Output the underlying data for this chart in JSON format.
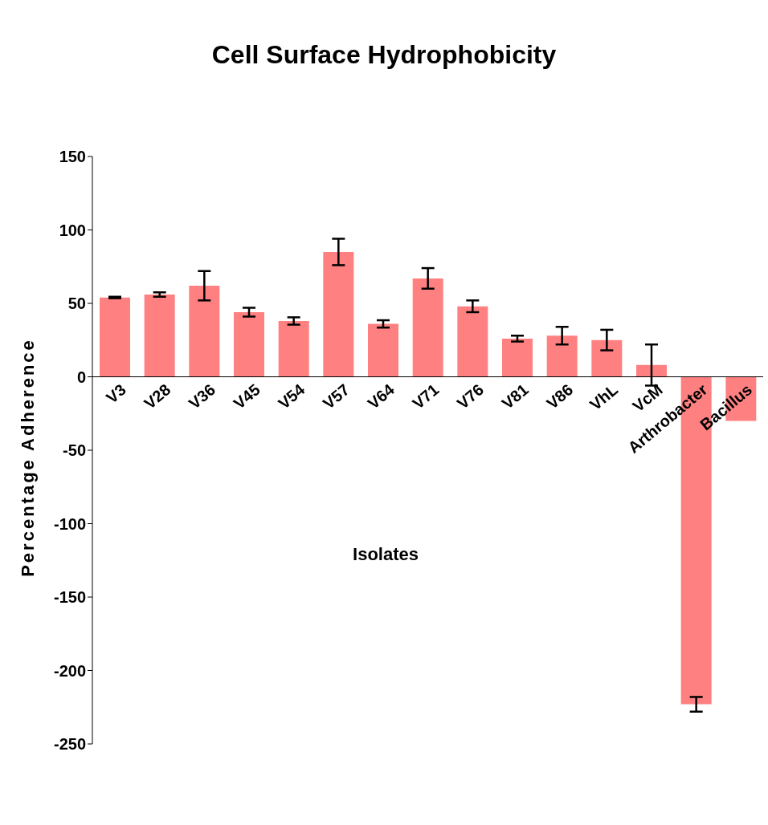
{
  "chart_data": {
    "type": "bar",
    "title": "Cell Surface Hydrophobicity",
    "xlabel": "Isolates",
    "ylabel": "Percentage Adherence",
    "categories": [
      "V3",
      "V28",
      "V36",
      "V45",
      "V54",
      "V57",
      "V64",
      "V71",
      "V76",
      "V81",
      "V86",
      "VhL",
      "VcM",
      "Arthrobacter",
      "Bacillus"
    ],
    "values": [
      54,
      56,
      62,
      44,
      38,
      85,
      36,
      67,
      48,
      26,
      28,
      25,
      8,
      -223,
      -30
    ],
    "errors": [
      0.5,
      1.5,
      10,
      3,
      2.5,
      9,
      2.5,
      7,
      4,
      2,
      6,
      7,
      14,
      5,
      null
    ],
    "color": "#ff8080",
    "ylim": [
      -250,
      150
    ],
    "yticks": [
      -250,
      -200,
      -150,
      -100,
      -50,
      0,
      50,
      100,
      150
    ],
    "grid": false,
    "legend": false
  }
}
